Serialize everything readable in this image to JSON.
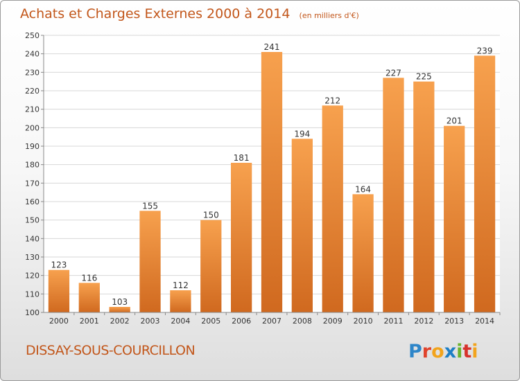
{
  "chart_data": {
    "type": "bar",
    "title": "Achats et Charges Externes 2000 à 2014",
    "unit": "(en milliers d'€)",
    "categories": [
      "2000",
      "2001",
      "2002",
      "2003",
      "2004",
      "2005",
      "2006",
      "2007",
      "2008",
      "2009",
      "2010",
      "2011",
      "2012",
      "2013",
      "2014"
    ],
    "values": [
      123,
      116,
      103,
      155,
      112,
      150,
      181,
      241,
      194,
      212,
      164,
      227,
      225,
      201,
      239
    ],
    "yticks": [
      "100",
      "110",
      "120",
      "130",
      "140",
      "150",
      "160",
      "170",
      "180",
      "190",
      "200",
      "210",
      "220",
      "230",
      "240",
      "250"
    ],
    "ylim": [
      100,
      250
    ],
    "grid": true,
    "bar_color_top": "#f7a14e",
    "bar_color_bottom": "#d0691f",
    "text_color": "#c2561a"
  },
  "footer": {
    "commune": "DISSAY-SOUS-COURCILLON",
    "brand": "Proxiti"
  }
}
